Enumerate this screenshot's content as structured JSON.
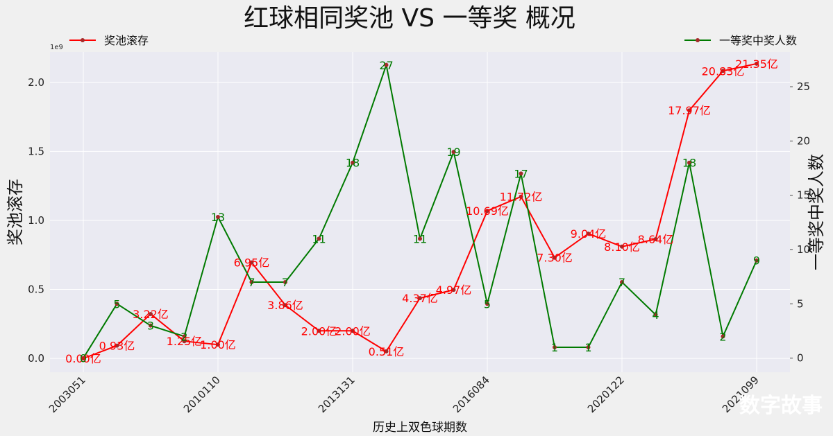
{
  "chart_data": {
    "type": "line",
    "title": "红球相同奖池 VS 一等奖 概况",
    "xlabel": "历史上双色球期数",
    "ylabel_left": "奖池滚存",
    "ylabel_right": "一等奖中奖人数",
    "y_scale_note": "1e9",
    "x_tick_labels": [
      "2003051",
      "2010110",
      "2013131",
      "2016084",
      "2020122",
      "2021099"
    ],
    "x_tick_positions": [
      0,
      4,
      8,
      12,
      16,
      20
    ],
    "ylim_left": [
      -0.1,
      2.22
    ],
    "yticks_left": [
      "0.0",
      "0.5",
      "1.0",
      "1.5",
      "2.0"
    ],
    "ylim_right": [
      -1.3,
      28.2
    ],
    "yticks_right": [
      "0",
      "5",
      "10",
      "15",
      "20",
      "25"
    ],
    "grid": true,
    "legend": [
      {
        "name": "奖池滚存",
        "color": "#ff0000",
        "placement": "top-left"
      },
      {
        "name": "一等奖中奖人数",
        "color": "#007a00",
        "placement": "top-right"
      }
    ],
    "series": [
      {
        "name": "奖池滚存",
        "axis": "left",
        "color": "#ff0000",
        "values": [
          0.0,
          0.093,
          0.322,
          0.125,
          0.1,
          0.695,
          0.386,
          0.2,
          0.2,
          0.051,
          0.437,
          0.497,
          1.069,
          1.172,
          0.73,
          0.904,
          0.81,
          0.864,
          1.797,
          2.083,
          2.135
        ],
        "labels": [
          "0.00亿",
          "0.93亿",
          "3.22亿",
          "1.25亿",
          "1.00亿",
          "6.95亿",
          "3.86亿",
          "2.00亿",
          "2.00亿",
          "0.51亿",
          "4.37亿",
          "4.97亿",
          "10.69亿",
          "11.72亿",
          "7.30亿",
          "9.04亿",
          "8.10亿",
          "8.64亿",
          "17.97亿",
          "20.83亿",
          "21.35亿"
        ]
      },
      {
        "name": "一等奖中奖人数",
        "axis": "right",
        "color": "#007a00",
        "values": [
          0,
          5,
          3,
          2,
          13,
          7,
          7,
          11,
          18,
          27,
          11,
          19,
          5,
          17,
          1,
          1,
          7,
          4,
          18,
          2,
          9
        ],
        "labels": [
          "0",
          "5",
          "3",
          "2",
          "13",
          "7",
          "7",
          "11",
          "18",
          "27",
          "11",
          "19",
          "5",
          "17",
          "1",
          "1",
          "7",
          "4",
          "18",
          "2",
          "9"
        ]
      }
    ]
  },
  "watermark": "数字故事"
}
